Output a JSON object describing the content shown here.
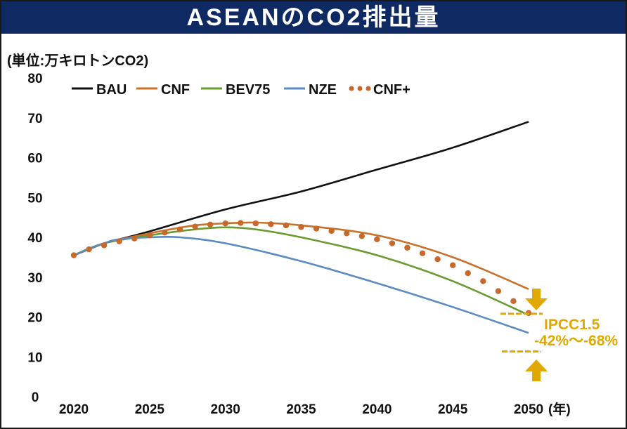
{
  "chart_data": {
    "type": "line",
    "title": "ASEANのCO2排出量",
    "ylabel": "(単位:万キロトンCO2)",
    "xlabel": "(年)",
    "ylim": [
      0,
      80
    ],
    "xlim": [
      2020,
      2050
    ],
    "yticks": [
      "0",
      "10",
      "20",
      "30",
      "40",
      "50",
      "60",
      "70",
      "80"
    ],
    "xticks": [
      "2020",
      "2025",
      "2030",
      "2035",
      "2040",
      "2045",
      "2050"
    ],
    "legend_position": "top",
    "series": [
      {
        "name": "BAU",
        "color": "#111111",
        "style": "solid",
        "x": [
          2020,
          2021,
          2022,
          2023,
          2025,
          2030,
          2035,
          2040,
          2045,
          2050
        ],
        "y": [
          35.5,
          37,
          38.5,
          39.5,
          41.5,
          47,
          51.5,
          57,
          62.5,
          69
        ]
      },
      {
        "name": "CNF",
        "color": "#c8712a",
        "style": "solid",
        "x": [
          2020,
          2022,
          2025,
          2028,
          2030,
          2032,
          2035,
          2040,
          2045,
          2050
        ],
        "y": [
          35.5,
          38.5,
          41,
          43,
          43.5,
          43.7,
          43,
          40.5,
          35,
          27
        ]
      },
      {
        "name": "BEV75",
        "color": "#6a9a30",
        "style": "solid",
        "x": [
          2020,
          2022,
          2025,
          2028,
          2030,
          2032,
          2035,
          2040,
          2045,
          2050
        ],
        "y": [
          35.5,
          38.5,
          40.5,
          42,
          42.5,
          42,
          40,
          35.5,
          29,
          20.5
        ]
      },
      {
        "name": "NZE",
        "color": "#5b8bc0",
        "style": "solid",
        "x": [
          2020,
          2022,
          2023,
          2025,
          2027,
          2030,
          2035,
          2040,
          2045,
          2050
        ],
        "y": [
          35.5,
          38.5,
          39.5,
          40,
          40,
          38.5,
          34,
          28.5,
          22.5,
          16
        ]
      },
      {
        "name": "CNF+",
        "color": "#c8682a",
        "style": "dotted",
        "x": [
          2020,
          2021,
          2022,
          2023,
          2024,
          2025,
          2026,
          2027,
          2028,
          2029,
          2030,
          2031,
          2032,
          2033,
          2034,
          2035,
          2036,
          2037,
          2038,
          2039,
          2040,
          2041,
          2042,
          2043,
          2044,
          2045,
          2046,
          2047,
          2048,
          2049,
          2050
        ],
        "y": [
          35.5,
          37,
          38,
          39,
          39.7,
          40.5,
          41.2,
          42,
          42.7,
          43.2,
          43.5,
          43.6,
          43.5,
          43.3,
          43,
          42.6,
          42.2,
          41.6,
          41,
          40.3,
          39.5,
          38.5,
          37.4,
          36,
          34.5,
          33,
          31,
          29,
          26.5,
          24,
          21
        ]
      }
    ],
    "annotations": {
      "line1": "IPCC1.5",
      "line2": "-42%～-68%",
      "color": "#e0a800",
      "range_upper": 21,
      "range_lower": 11
    }
  }
}
